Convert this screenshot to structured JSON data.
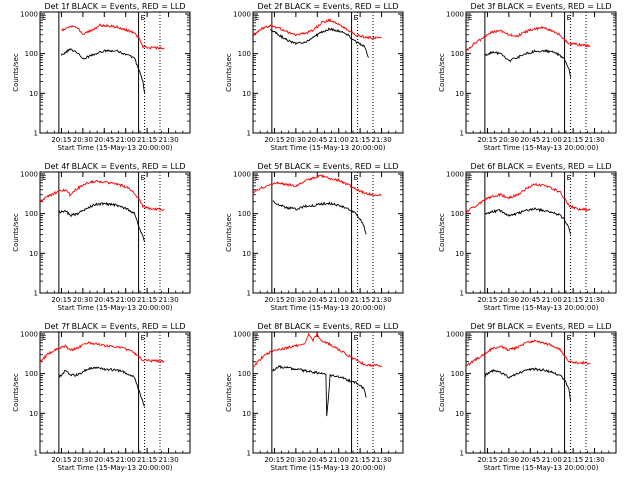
{
  "chart_data": [
    {
      "type": "line",
      "title": "Det 1f BLACK = Events, RED = LLD",
      "xlabel": "Start Time (15-May-13 20:00:00)",
      "ylabel": "Counts/sec",
      "yscale": "log",
      "ylim": [
        1,
        1000
      ],
      "yticks": [
        "1",
        "10",
        "100",
        "1000"
      ],
      "xlim": [
        20.0,
        21.75
      ],
      "xticks": [
        "20:15",
        "20:30",
        "20:45",
        "21:00",
        "21:15",
        "21:30"
      ],
      "grid": false,
      "markers": [
        "E",
        "E"
      ],
      "series": [
        {
          "color": "#ff0000",
          "x": [
            20.25,
            20.35,
            20.45,
            20.5,
            20.6,
            20.7,
            20.8,
            20.9,
            21.0,
            21.1,
            21.15,
            21.2,
            21.3,
            21.4,
            21.45
          ],
          "values": [
            380,
            500,
            420,
            310,
            380,
            520,
            500,
            470,
            400,
            330,
            250,
            150,
            140,
            140,
            140
          ]
        },
        {
          "color": "#000000",
          "x": [
            20.25,
            20.3,
            20.35,
            20.45,
            20.5,
            20.6,
            20.7,
            20.8,
            20.9,
            21.0,
            21.1,
            21.15,
            21.2,
            21.22
          ],
          "values": [
            90,
            110,
            130,
            100,
            75,
            90,
            110,
            120,
            115,
            95,
            80,
            40,
            20,
            10
          ]
        }
      ]
    },
    {
      "type": "line",
      "title": "Det 2f BLACK = Events, RED = LLD",
      "xlabel": "Start Time (15-May-13 20:00:00)",
      "ylabel": "Counts/sec",
      "yscale": "log",
      "ylim": [
        1,
        1000
      ],
      "yticks": [
        "1",
        "10",
        "100",
        "1000"
      ],
      "xlim": [
        20.0,
        21.75
      ],
      "xticks": [
        "20:15",
        "20:30",
        "20:45",
        "21:00",
        "21:15",
        "21:30"
      ],
      "grid": false,
      "markers": [
        "E",
        "E"
      ],
      "series": [
        {
          "color": "#ff0000",
          "x": [
            20.0,
            20.1,
            20.2,
            20.3,
            20.4,
            20.5,
            20.6,
            20.7,
            20.8,
            20.9,
            21.0,
            21.1,
            21.2,
            21.3,
            21.4,
            21.5
          ],
          "values": [
            300,
            420,
            500,
            450,
            350,
            300,
            320,
            380,
            600,
            700,
            550,
            400,
            300,
            260,
            250,
            260
          ]
        },
        {
          "color": "#000000",
          "x": [
            20.2,
            20.3,
            20.4,
            20.5,
            20.6,
            20.7,
            20.8,
            20.9,
            21.0,
            21.1,
            21.2,
            21.3,
            21.35
          ],
          "values": [
            400,
            300,
            220,
            180,
            190,
            250,
            350,
            420,
            380,
            300,
            200,
            150,
            80
          ]
        }
      ]
    },
    {
      "type": "line",
      "title": "Det 3f BLACK = Events, RED = LLD",
      "xlabel": "Start Time (15-May-13 20:00:00)",
      "ylabel": "Counts/sec",
      "yscale": "log",
      "ylim": [
        1,
        1000
      ],
      "yticks": [
        "1",
        "10",
        "100",
        "1000"
      ],
      "xlim": [
        20.0,
        21.75
      ],
      "xticks": [
        "20:15",
        "20:30",
        "20:45",
        "21:00",
        "21:15",
        "21:30"
      ],
      "grid": false,
      "markers": [
        "E",
        "E"
      ],
      "series": [
        {
          "color": "#ff0000",
          "x": [
            20.0,
            20.1,
            20.2,
            20.3,
            20.4,
            20.5,
            20.6,
            20.7,
            20.8,
            20.9,
            21.0,
            21.1,
            21.15,
            21.2,
            21.3,
            21.4,
            21.45
          ],
          "values": [
            120,
            180,
            250,
            350,
            380,
            300,
            280,
            360,
            420,
            450,
            380,
            300,
            220,
            180,
            170,
            160,
            150
          ]
        },
        {
          "color": "#000000",
          "x": [
            20.22,
            20.3,
            20.4,
            20.5,
            20.6,
            20.7,
            20.8,
            20.9,
            21.0,
            21.1,
            21.15,
            21.2,
            21.22
          ],
          "values": [
            90,
            110,
            100,
            65,
            80,
            100,
            115,
            120,
            110,
            90,
            70,
            40,
            25
          ]
        }
      ]
    },
    {
      "type": "line",
      "title": "Det 4f BLACK = Events, RED = LLD",
      "xlabel": "Start Time (15-May-13 20:00:00)",
      "ylabel": "Counts/sec",
      "yscale": "log",
      "ylim": [
        1,
        1000
      ],
      "yticks": [
        "1",
        "10",
        "100",
        "1000"
      ],
      "xlim": [
        20.0,
        21.75
      ],
      "xticks": [
        "20:15",
        "20:30",
        "20:45",
        "21:00",
        "21:15",
        "21:30"
      ],
      "grid": false,
      "markers": [
        "E",
        "E"
      ],
      "series": [
        {
          "color": "#ff0000",
          "x": [
            20.0,
            20.1,
            20.2,
            20.3,
            20.35,
            20.45,
            20.55,
            20.65,
            20.75,
            20.85,
            20.95,
            21.05,
            21.15,
            21.2,
            21.3,
            21.4,
            21.45
          ],
          "values": [
            200,
            280,
            350,
            400,
            300,
            450,
            600,
            650,
            620,
            580,
            520,
            420,
            250,
            150,
            130,
            130,
            125
          ]
        },
        {
          "color": "#000000",
          "x": [
            20.22,
            20.3,
            20.35,
            20.45,
            20.55,
            20.65,
            20.75,
            20.85,
            20.95,
            21.05,
            21.1,
            21.15,
            21.22
          ],
          "values": [
            110,
            120,
            90,
            100,
            140,
            170,
            180,
            170,
            150,
            120,
            100,
            50,
            20
          ]
        }
      ]
    },
    {
      "type": "line",
      "title": "Det 5f BLACK = Events, RED = LLD",
      "xlabel": "Start Time (15-May-13 20:00:00)",
      "ylabel": "Counts/sec",
      "yscale": "log",
      "ylim": [
        1,
        1000
      ],
      "yticks": [
        "1",
        "10",
        "100",
        "1000"
      ],
      "xlim": [
        20.0,
        21.75
      ],
      "xticks": [
        "20:15",
        "20:30",
        "20:45",
        "21:00",
        "21:15",
        "21:30"
      ],
      "grid": false,
      "markers": [
        "E",
        "E"
      ],
      "series": [
        {
          "color": "#ff0000",
          "x": [
            20.0,
            20.1,
            20.2,
            20.3,
            20.4,
            20.5,
            20.6,
            20.7,
            20.8,
            20.9,
            21.0,
            21.1,
            21.2,
            21.3,
            21.4,
            21.5
          ],
          "values": [
            350,
            450,
            550,
            600,
            550,
            500,
            650,
            800,
            900,
            750,
            700,
            550,
            420,
            330,
            300,
            300
          ]
        },
        {
          "color": "#000000",
          "x": [
            20.23,
            20.3,
            20.4,
            20.5,
            20.6,
            20.7,
            20.8,
            20.9,
            21.0,
            21.1,
            21.2,
            21.28,
            21.32
          ],
          "values": [
            200,
            170,
            140,
            130,
            150,
            160,
            175,
            180,
            160,
            140,
            100,
            60,
            30
          ]
        }
      ]
    },
    {
      "type": "line",
      "title": "Det 6f BLACK = Events, RED = LLD",
      "xlabel": "Start Time (15-May-13 20:00:00)",
      "ylabel": "Counts/sec",
      "yscale": "log",
      "ylim": [
        1,
        1000
      ],
      "yticks": [
        "1",
        "10",
        "100",
        "1000"
      ],
      "xlim": [
        20.0,
        21.75
      ],
      "xticks": [
        "20:15",
        "20:30",
        "20:45",
        "21:00",
        "21:15",
        "21:30"
      ],
      "grid": false,
      "markers": [
        "E",
        "E"
      ],
      "series": [
        {
          "color": "#ff0000",
          "x": [
            20.0,
            20.1,
            20.2,
            20.3,
            20.4,
            20.5,
            20.6,
            20.7,
            20.8,
            20.9,
            21.0,
            21.1,
            21.15,
            21.2,
            21.3,
            21.4,
            21.45
          ],
          "values": [
            110,
            150,
            210,
            270,
            300,
            250,
            300,
            420,
            550,
            520,
            440,
            340,
            240,
            160,
            130,
            130,
            125
          ]
        },
        {
          "color": "#000000",
          "x": [
            20.22,
            20.3,
            20.4,
            20.5,
            20.6,
            20.7,
            20.8,
            20.9,
            21.0,
            21.1,
            21.15,
            21.2,
            21.22
          ],
          "values": [
            100,
            110,
            120,
            90,
            100,
            120,
            130,
            120,
            110,
            90,
            70,
            45,
            30
          ]
        }
      ]
    },
    {
      "type": "line",
      "title": "Det 7f BLACK = Events, RED = LLD",
      "xlabel": "Start Time (15-May-13 20:00:00)",
      "ylabel": "Counts/sec",
      "yscale": "log",
      "ylim": [
        1,
        1000
      ],
      "yticks": [
        "1",
        "10",
        "100",
        "1000"
      ],
      "xlim": [
        20.0,
        21.75
      ],
      "xticks": [
        "20:15",
        "20:30",
        "20:45",
        "21:00",
        "21:15",
        "21:30"
      ],
      "grid": false,
      "markers": [
        "E",
        "E"
      ],
      "series": [
        {
          "color": "#ff0000",
          "x": [
            20.0,
            20.1,
            20.2,
            20.3,
            20.35,
            20.45,
            20.55,
            20.65,
            20.75,
            20.85,
            20.95,
            21.05,
            21.15,
            21.2,
            21.3,
            21.4,
            21.45
          ],
          "values": [
            200,
            320,
            420,
            500,
            380,
            460,
            600,
            560,
            500,
            480,
            450,
            380,
            270,
            220,
            210,
            210,
            200
          ]
        },
        {
          "color": "#000000",
          "x": [
            20.22,
            20.3,
            20.35,
            20.45,
            20.55,
            20.65,
            20.75,
            20.85,
            20.95,
            21.05,
            21.1,
            21.15,
            21.22
          ],
          "values": [
            80,
            120,
            90,
            95,
            130,
            140,
            130,
            125,
            115,
            95,
            80,
            40,
            15
          ]
        }
      ]
    },
    {
      "type": "line",
      "title": "Det 8f BLACK = Events, RED = LLD",
      "xlabel": "Start Time (15-May-13 20:00:00)",
      "ylabel": "Counts/sec",
      "yscale": "log",
      "ylim": [
        1,
        1000
      ],
      "yticks": [
        "1",
        "10",
        "100",
        "1000"
      ],
      "xlim": [
        20.0,
        21.75
      ],
      "xticks": [
        "20:15",
        "20:30",
        "20:45",
        "21:00",
        "21:15",
        "21:30"
      ],
      "grid": false,
      "markers": [
        "E",
        "E"
      ],
      "series": [
        {
          "color": "#ff0000",
          "x": [
            20.0,
            20.1,
            20.2,
            20.3,
            20.4,
            20.5,
            20.6,
            20.65,
            20.7,
            20.75,
            20.8,
            20.85,
            20.9,
            21.0,
            21.1,
            21.2,
            21.3,
            21.4,
            21.5
          ],
          "values": [
            150,
            250,
            350,
            400,
            450,
            500,
            550,
            1000,
            700,
            1000,
            650,
            600,
            550,
            400,
            300,
            220,
            170,
            160,
            160
          ]
        },
        {
          "color": "#000000",
          "x": [
            20.23,
            20.3,
            20.4,
            20.5,
            20.6,
            20.7,
            20.8,
            20.85,
            20.86,
            20.9,
            21.0,
            21.1,
            21.2,
            21.3,
            21.32
          ],
          "values": [
            120,
            150,
            140,
            130,
            120,
            110,
            100,
            95,
            8,
            90,
            85,
            70,
            60,
            40,
            25
          ]
        }
      ]
    },
    {
      "type": "line",
      "title": "Det 9f BLACK = Events, RED = LLD",
      "xlabel": "Start Time (15-May-13 20:00:00)",
      "ylabel": "Counts/sec",
      "yscale": "log",
      "ylim": [
        1,
        1000
      ],
      "yticks": [
        "1",
        "10",
        "100",
        "1000"
      ],
      "xlim": [
        20.0,
        21.75
      ],
      "xticks": [
        "20:15",
        "20:30",
        "20:45",
        "21:00",
        "21:15",
        "21:30"
      ],
      "grid": false,
      "markers": [
        "E",
        "E"
      ],
      "series": [
        {
          "color": "#ff0000",
          "x": [
            20.0,
            20.1,
            20.2,
            20.3,
            20.4,
            20.5,
            20.6,
            20.7,
            20.8,
            20.9,
            21.0,
            21.1,
            21.15,
            21.2,
            21.3,
            21.4,
            21.45
          ],
          "values": [
            150,
            220,
            300,
            420,
            480,
            400,
            450,
            600,
            680,
            600,
            520,
            400,
            280,
            200,
            190,
            190,
            180
          ]
        },
        {
          "color": "#000000",
          "x": [
            20.22,
            20.3,
            20.4,
            20.5,
            20.6,
            20.7,
            20.8,
            20.9,
            21.0,
            21.1,
            21.15,
            21.2,
            21.22
          ],
          "values": [
            90,
            120,
            110,
            80,
            100,
            120,
            130,
            125,
            110,
            90,
            70,
            40,
            20
          ]
        }
      ]
    }
  ]
}
